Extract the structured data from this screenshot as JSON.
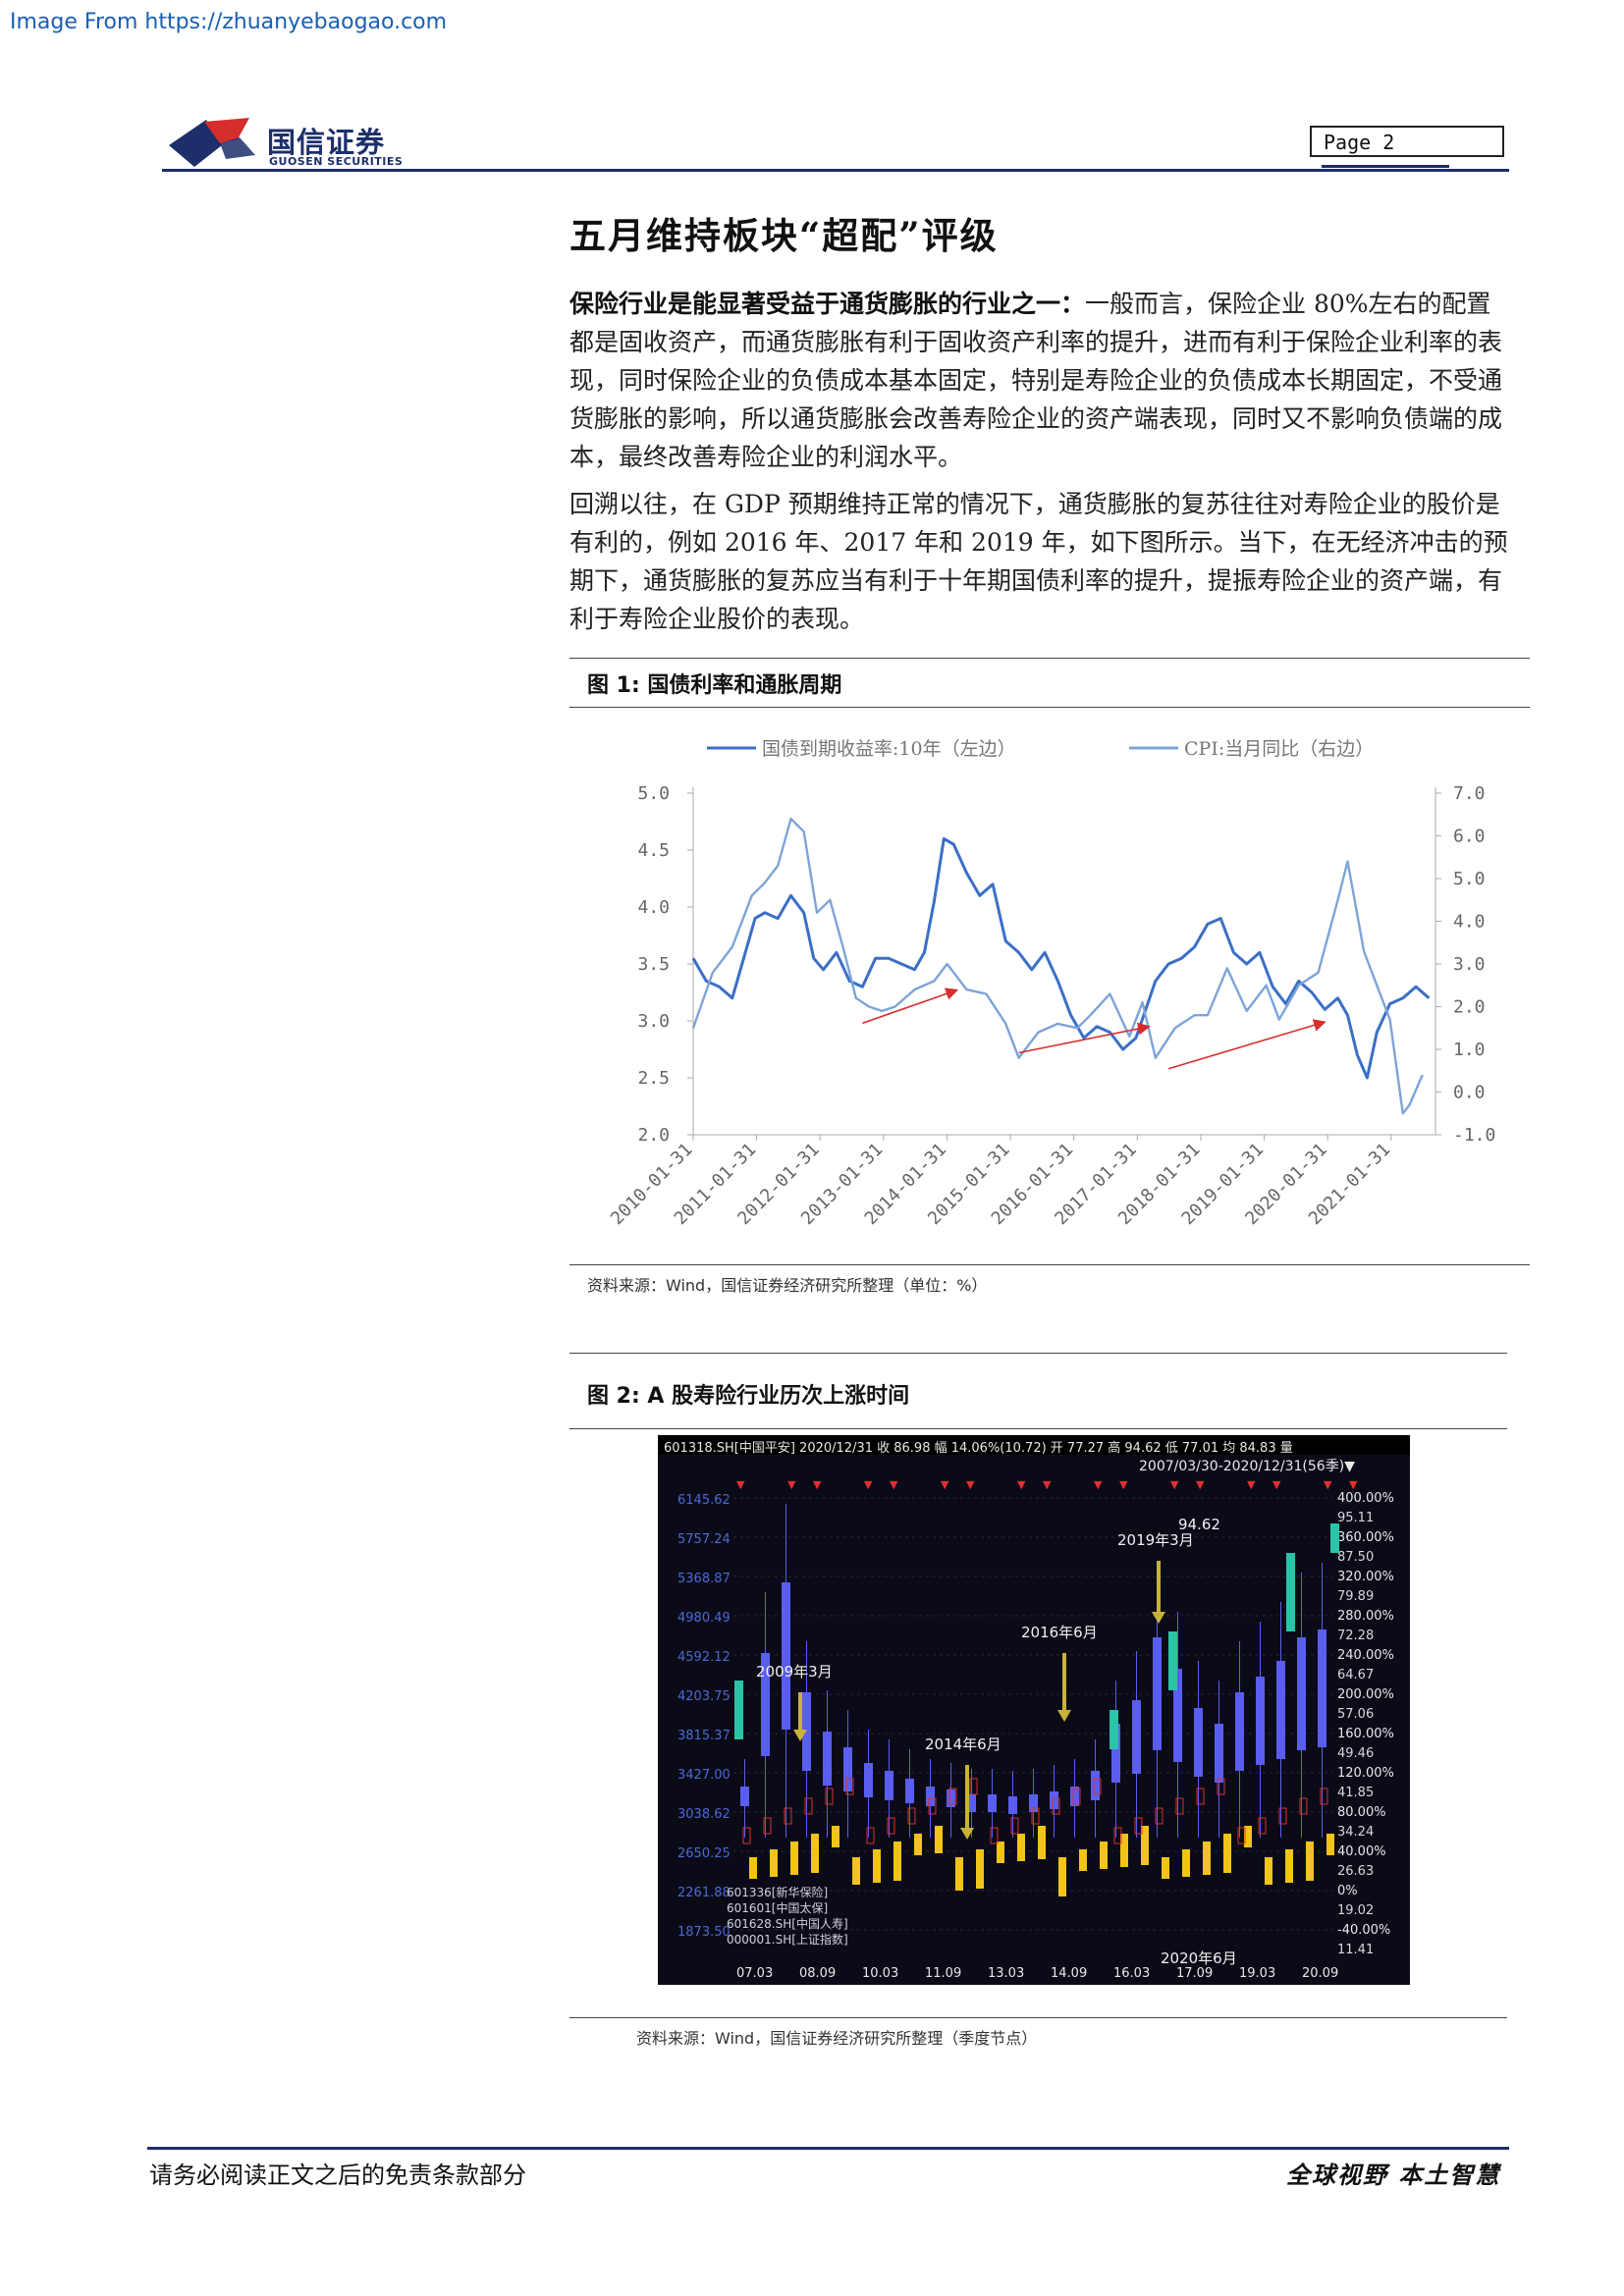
{
  "source_banner": "Image From https://zhuanyebaogao.com",
  "header": {
    "brand_cn": "国信证券",
    "brand_en": "GUOSEN SECURITIES",
    "page_label": "Page  2"
  },
  "section_title": "五月维持板块“超配”评级",
  "paragraph1": {
    "lead": "保险行业是能显著受益于通货膨胀的行业之一：",
    "body": "一般而言，保险企业 80%左右的配置都是固收资产，而通货膨胀有利于固收资产利率的提升，进而有利于保险企业利率的表现，同时保险企业的负债成本基本固定，特别是寿险企业的负债成本长期固定，不受通货膨胀的影响，所以通货膨胀会改善寿险企业的资产端表现，同时又不影响负债端的成本，最终改善寿险企业的利润水平。"
  },
  "paragraph2": "回溯以往，在 GDP 预期维持正常的情况下，通货膨胀的复苏往往对寿险企业的股价是有利的，例如 2016 年、2017 年和 2019 年，如下图所示。当下，在无经济冲击的预期下，通货膨胀的复苏应当有利于十年期国债利率的提升，提振寿险企业的资产端，有利于寿险企业股价的表现。",
  "figure1": {
    "title": "图 1:  国债利率和通胀周期",
    "source": "资料来源：Wind，国信证券经济研究所整理（单位：%）"
  },
  "figure2": {
    "title": "图 2:  A 股寿险行业历次上涨时间",
    "source": "资料来源：Wind，国信证券经济研究所整理（季度节点）",
    "header_text": "601318.SH[中国平安]   2020/12/31  收 86.98  幅 14.06%(10.72)  开 77.27  高 94.62  低 77.01  均 84.83  量",
    "range_text": "2007/03/30-2020/12/31(56季)▼",
    "price_labels": [
      "6145.62",
      "5757.24",
      "5368.87",
      "4980.49",
      "4592.12",
      "4203.75",
      "3815.37",
      "3427.00",
      "3038.62",
      "2650.25",
      "2261.88",
      "1873.50"
    ],
    "right_labels": [
      "400.00%",
      "95.11",
      "360.00%",
      "87.50",
      "320.00%",
      "79.89",
      "280.00%",
      "72.28",
      "240.00%",
      "64.67",
      "200.00%",
      "57.06",
      "160.00%",
      "49.46",
      "120.00%",
      "41.85",
      "80.00%",
      "34.24",
      "40.00%",
      "26.63",
      "0%",
      "19.02",
      "-40.00%",
      "11.41"
    ],
    "x_labels": [
      "07.03",
      "08.09",
      "10.03",
      "11.09",
      "13.03",
      "14.09",
      "16.03",
      "17.09",
      "19.03",
      "20.09"
    ],
    "annotations": [
      "2009年3月",
      "2014年6月",
      "2016年6月",
      "2019年3月",
      "2020年6月",
      "94.62"
    ],
    "legend_items": [
      "601336[新华保险]",
      "601601[中国太保]",
      "601628.SH[中国人寿]",
      "000001.SH[上证指数]"
    ]
  },
  "chart_data": {
    "type": "line",
    "legend": [
      "国债到期收益率:10年（左边）",
      "CPI:当月同比（右边）"
    ],
    "x_tick_labels": [
      "2010-01-31",
      "2011-01-31",
      "2012-01-31",
      "2013-01-31",
      "2014-01-31",
      "2015-01-31",
      "2016-01-31",
      "2017-01-31",
      "2018-01-31",
      "2019-01-31",
      "2020-01-31",
      "2021-01-31"
    ],
    "y_left": {
      "ticks": [
        "5.0",
        "4.5",
        "4.0",
        "3.5",
        "3.0",
        "2.5",
        "2.0"
      ],
      "lim": [
        2.0,
        5.0
      ]
    },
    "y_right": {
      "ticks": [
        "7.0",
        "6.0",
        "5.0",
        "4.0",
        "3.0",
        "2.0",
        "1.0",
        "0.0",
        "-1.0"
      ],
      "lim": [
        -1.0,
        7.0
      ]
    },
    "x_range": [
      2010.0,
      2021.4
    ],
    "series": [
      {
        "name": "国债到期收益率:10年（左边）",
        "axis": "left",
        "color": "#3b6fc6",
        "x": [
          2010.0,
          2010.2,
          2010.4,
          2010.6,
          2010.8,
          2010.95,
          2011.1,
          2011.3,
          2011.5,
          2011.7,
          2011.85,
          2012.0,
          2012.2,
          2012.4,
          2012.6,
          2012.8,
          2013.0,
          2013.2,
          2013.4,
          2013.55,
          2013.7,
          2013.85,
          2014.0,
          2014.2,
          2014.4,
          2014.6,
          2014.8,
          2015.0,
          2015.2,
          2015.4,
          2015.6,
          2015.8,
          2016.0,
          2016.2,
          2016.4,
          2016.6,
          2016.8,
          2016.95,
          2017.1,
          2017.3,
          2017.5,
          2017.7,
          2017.9,
          2018.1,
          2018.3,
          2018.5,
          2018.7,
          2018.9,
          2019.1,
          2019.3,
          2019.5,
          2019.7,
          2019.9,
          2020.05,
          2020.2,
          2020.35,
          2020.5,
          2020.7,
          2020.9,
          2021.1,
          2021.3
        ],
        "y": [
          3.55,
          3.35,
          3.3,
          3.2,
          3.6,
          3.9,
          3.95,
          3.9,
          4.1,
          3.95,
          3.55,
          3.45,
          3.6,
          3.35,
          3.3,
          3.55,
          3.55,
          3.5,
          3.45,
          3.6,
          4.05,
          4.6,
          4.55,
          4.3,
          4.1,
          4.2,
          3.7,
          3.6,
          3.45,
          3.6,
          3.35,
          3.05,
          2.85,
          2.95,
          2.9,
          2.75,
          2.85,
          3.1,
          3.35,
          3.5,
          3.55,
          3.65,
          3.85,
          3.9,
          3.6,
          3.5,
          3.6,
          3.3,
          3.15,
          3.35,
          3.25,
          3.1,
          3.2,
          3.05,
          2.7,
          2.5,
          2.9,
          3.15,
          3.2,
          3.3,
          3.2
        ]
      },
      {
        "name": "CPI:当月同比（右边）",
        "axis": "right",
        "color": "#7da4d8",
        "x": [
          2010.0,
          2010.3,
          2010.6,
          2010.9,
          2011.1,
          2011.3,
          2011.5,
          2011.7,
          2011.9,
          2012.1,
          2012.3,
          2012.5,
          2012.7,
          2012.9,
          2013.1,
          2013.4,
          2013.7,
          2013.9,
          2014.2,
          2014.5,
          2014.8,
          2015.0,
          2015.3,
          2015.6,
          2015.9,
          2016.1,
          2016.4,
          2016.7,
          2016.9,
          2017.1,
          2017.4,
          2017.7,
          2017.9,
          2018.2,
          2018.5,
          2018.8,
          2019.0,
          2019.3,
          2019.6,
          2019.9,
          2020.05,
          2020.3,
          2020.5,
          2020.7,
          2020.9,
          2021.0,
          2021.2
        ],
        "y": [
          1.5,
          2.8,
          3.4,
          4.6,
          4.9,
          5.3,
          6.4,
          6.1,
          4.2,
          4.5,
          3.4,
          2.2,
          2.0,
          1.9,
          2.0,
          2.4,
          2.6,
          3.0,
          2.4,
          2.3,
          1.6,
          0.8,
          1.4,
          1.6,
          1.5,
          1.8,
          2.3,
          1.3,
          2.1,
          0.8,
          1.5,
          1.8,
          1.8,
          2.9,
          1.9,
          2.5,
          1.7,
          2.5,
          2.8,
          4.5,
          5.4,
          3.3,
          2.5,
          1.7,
          -0.5,
          -0.3,
          0.4
        ]
      }
    ],
    "annotation_arrows": 3
  },
  "footer": {
    "left": "请务必阅读正文之后的免责条款部分",
    "right": "全球视野  本土智慧"
  }
}
